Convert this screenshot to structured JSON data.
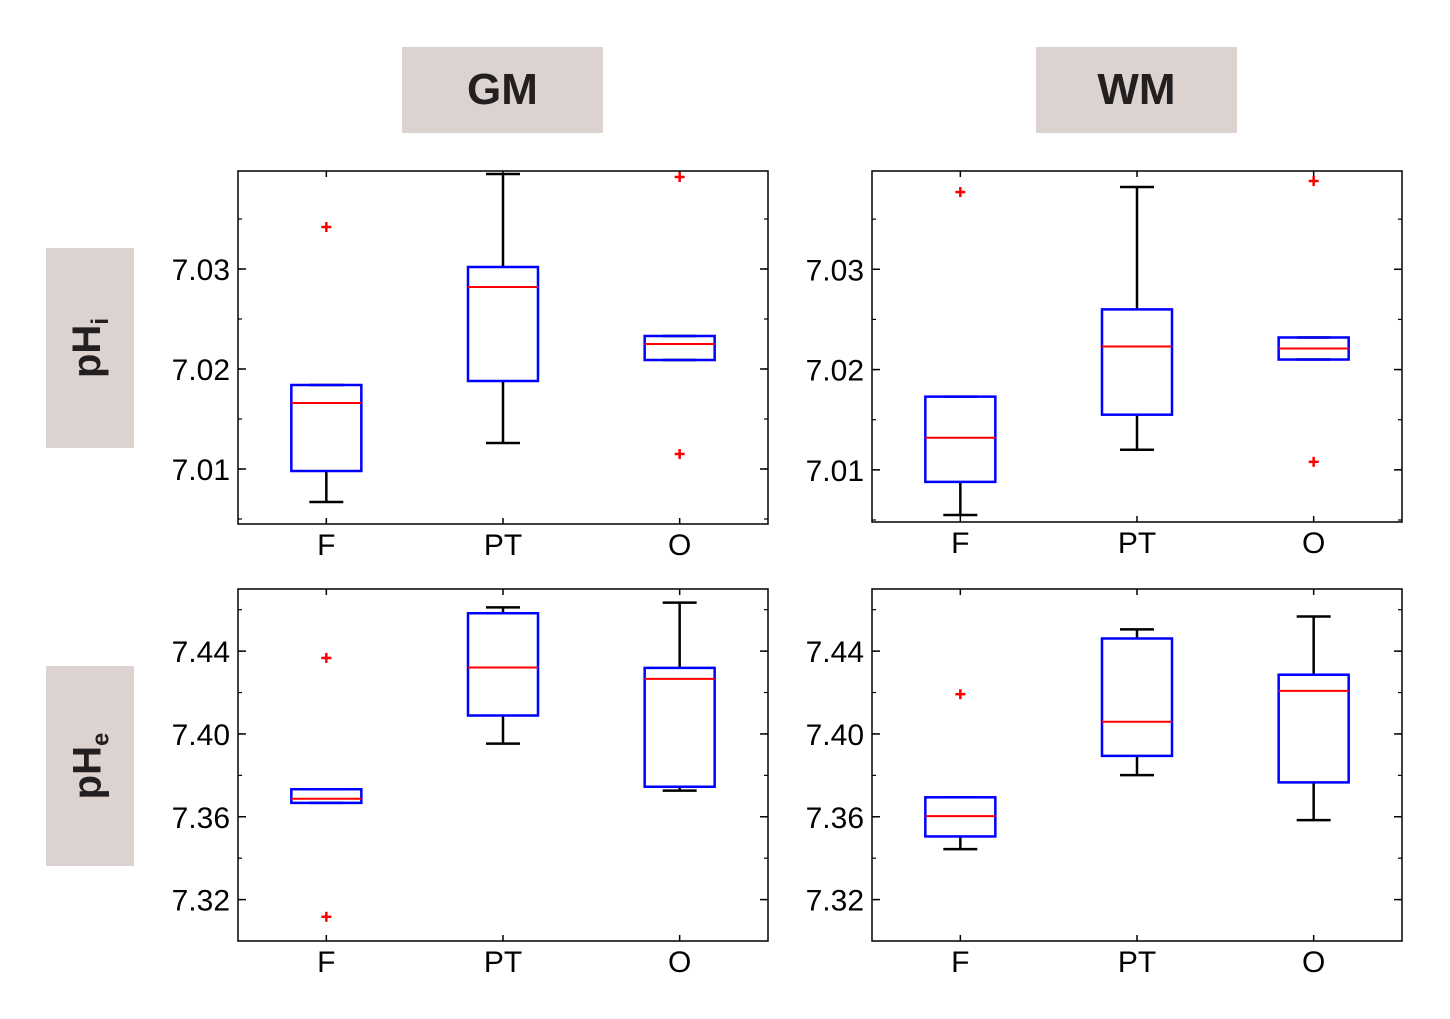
{
  "headers": {
    "columns": [
      "GM",
      "WM"
    ],
    "rows": [
      {
        "base": "pH",
        "sub": "i"
      },
      {
        "base": "pH",
        "sub": "e"
      }
    ]
  },
  "colors": {
    "box": "#0000ff",
    "median": "#ff0000",
    "whisker": "#000000",
    "outlier": "#ff0000",
    "axis": "#000000",
    "header_bg": "#dcd3d1"
  },
  "chart_data": [
    {
      "type": "box",
      "title": "GM pHi",
      "categories": [
        "F",
        "PT",
        "O"
      ],
      "ylim": [
        7.0045,
        7.0398
      ],
      "yticks": [
        7.01,
        7.02,
        7.03
      ],
      "ytick_labels": [
        "7.01",
        "7.02",
        "7.03"
      ],
      "minor_step": 0.005,
      "boxes": [
        {
          "whisker_low": 7.0067,
          "q1": 7.0098,
          "median": 7.0166,
          "q3": 7.0184,
          "whisker_high": 7.0184,
          "outliers": [
            7.0342
          ]
        },
        {
          "whisker_low": 7.0126,
          "q1": 7.0188,
          "median": 7.0282,
          "q3": 7.0302,
          "whisker_high": 7.0395,
          "outliers": []
        },
        {
          "whisker_low": 7.0209,
          "q1": 7.0209,
          "median": 7.0225,
          "q3": 7.0233,
          "whisker_high": 7.0233,
          "outliers": [
            7.0392,
            7.0115
          ]
        }
      ]
    },
    {
      "type": "box",
      "title": "WM pHi",
      "categories": [
        "F",
        "PT",
        "O"
      ],
      "ylim": [
        7.0048,
        7.0398
      ],
      "yticks": [
        7.01,
        7.02,
        7.03
      ],
      "ytick_labels": [
        "7.01",
        "7.02",
        "7.03"
      ],
      "minor_step": 0.005,
      "boxes": [
        {
          "whisker_low": 7.0055,
          "q1": 7.0088,
          "median": 7.0132,
          "q3": 7.0173,
          "whisker_high": 7.0173,
          "outliers": [
            7.0377
          ]
        },
        {
          "whisker_low": 7.012,
          "q1": 7.0155,
          "median": 7.0223,
          "q3": 7.026,
          "whisker_high": 7.0382,
          "outliers": []
        },
        {
          "whisker_low": 7.021,
          "q1": 7.021,
          "median": 7.0221,
          "q3": 7.0232,
          "whisker_high": 7.0232,
          "outliers": [
            7.0388,
            7.0108
          ]
        }
      ]
    },
    {
      "type": "box",
      "title": "GM pHe",
      "categories": [
        "F",
        "PT",
        "O"
      ],
      "ylim": [
        7.3,
        7.47
      ],
      "yticks": [
        7.32,
        7.36,
        7.4,
        7.44
      ],
      "ytick_labels": [
        "7.32",
        "7.36",
        "7.40",
        "7.44"
      ],
      "minor_step": 0.02,
      "boxes": [
        {
          "whisker_low": 7.3667,
          "q1": 7.3667,
          "median": 7.3687,
          "q3": 7.3733,
          "whisker_high": 7.3733,
          "outliers": [
            7.4367,
            7.3117
          ]
        },
        {
          "whisker_low": 7.3953,
          "q1": 7.4089,
          "median": 7.4321,
          "q3": 7.4583,
          "whisker_high": 7.4611,
          "outliers": []
        },
        {
          "whisker_low": 7.3726,
          "q1": 7.3745,
          "median": 7.4266,
          "q3": 7.4319,
          "whisker_high": 7.4634,
          "outliers": []
        }
      ]
    },
    {
      "type": "box",
      "title": "WM pHe",
      "categories": [
        "F",
        "PT",
        "O"
      ],
      "ylim": [
        7.3,
        7.47
      ],
      "yticks": [
        7.32,
        7.36,
        7.4,
        7.44
      ],
      "ytick_labels": [
        "7.32",
        "7.36",
        "7.40",
        "7.44"
      ],
      "minor_step": 0.02,
      "boxes": [
        {
          "whisker_low": 7.3444,
          "q1": 7.3505,
          "median": 7.3603,
          "q3": 7.3694,
          "whisker_high": 7.3694,
          "outliers": [
            7.4192
          ]
        },
        {
          "whisker_low": 7.3801,
          "q1": 7.3894,
          "median": 7.4059,
          "q3": 7.4461,
          "whisker_high": 7.4505,
          "outliers": []
        },
        {
          "whisker_low": 7.3584,
          "q1": 7.3766,
          "median": 7.4208,
          "q3": 7.4286,
          "whisker_high": 7.4567,
          "outliers": []
        }
      ]
    }
  ]
}
